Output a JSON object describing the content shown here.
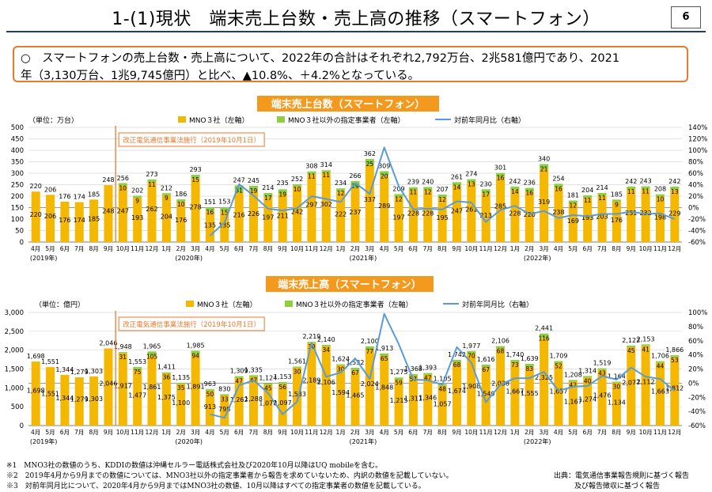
{
  "header": {
    "title": "1-(1)現状　端末売上台数・売上高の推移（スマートフォン）",
    "page_number": "6"
  },
  "summary": {
    "line1": "○　スマートフォンの売上台数・売上高について、2022年の合計はそれぞれ2,792万台、2兆581億円であり、2021",
    "line2": "年（3,130万台、1兆9,745億円）と比べ、▲10.8%、＋4.2%となっている。"
  },
  "colors": {
    "mno": "#f5b800",
    "other": "#8fce3f",
    "yoy": "#5b9bd5",
    "title_bg": "#f39a1e",
    "annotation": "#e87a2e"
  },
  "chart_data": [
    {
      "type": "bar",
      "title": "端末売上台数（スマートフォン）",
      "unit_label": "（単位：万台）",
      "legend": [
        "MNO３社（左軸）",
        "MNO３社以外の指定事業者（左軸）",
        "対前年同月比（右軸）"
      ],
      "annotation": "改正電気通信事業法施行（2019年10月1日）",
      "categories": [
        "4月",
        "5月",
        "6月",
        "7月",
        "8月",
        "9月",
        "10月",
        "11月",
        "12月",
        "1月",
        "2月",
        "3月",
        "4月",
        "5月",
        "6月",
        "7月",
        "8月",
        "9月",
        "10月",
        "11月",
        "12月",
        "1月",
        "2月",
        "3月",
        "4月",
        "5月",
        "6月",
        "7月",
        "8月",
        "9月",
        "10月",
        "11月",
        "12月",
        "1月",
        "2月",
        "3月",
        "4月",
        "5月",
        "6月",
        "7月",
        "8月",
        "9月",
        "10月",
        "11月",
        "12月"
      ],
      "year_labels": [
        {
          "label": "(2019年)",
          "index": 0
        },
        {
          "label": "(2020年)",
          "index": 10
        },
        {
          "label": "(2021年)",
          "index": 22
        },
        {
          "label": "(2022年)",
          "index": 34
        }
      ],
      "mno": [
        220,
        206,
        176,
        174,
        185,
        248,
        247,
        193,
        262,
        204,
        176,
        278,
        135,
        135,
        216,
        226,
        197,
        211,
        242,
        297,
        302,
        222,
        237,
        337,
        289,
        197,
        228,
        228,
        195,
        247,
        261,
        213,
        285,
        228,
        220,
        319,
        238,
        169,
        193,
        203,
        176,
        231,
        232,
        198,
        229
      ],
      "other": [
        0,
        0,
        0,
        0,
        0,
        0,
        10,
        9,
        11,
        9,
        10,
        15,
        16,
        15,
        31,
        19,
        17,
        19,
        10,
        11,
        11,
        12,
        29,
        25,
        20,
        12,
        11,
        12,
        12,
        14,
        13,
        17,
        16,
        14,
        16,
        21,
        16,
        12,
        11,
        11,
        9,
        11,
        11,
        10,
        13
      ],
      "total": [
        220,
        206,
        176,
        174,
        185,
        248,
        256,
        202,
        273,
        212,
        186,
        293,
        151,
        153,
        247,
        245,
        214,
        235,
        252,
        308,
        314,
        234,
        266,
        362,
        309,
        209,
        239,
        240,
        207,
        261,
        274,
        230,
        301,
        242,
        236,
        340,
        254,
        181,
        204,
        214,
        185,
        242,
        243,
        208,
        242
      ],
      "yoy": [
        null,
        null,
        null,
        null,
        null,
        null,
        null,
        null,
        null,
        null,
        null,
        null,
        -49,
        -26,
        41,
        21,
        -2,
        -5,
        -1,
        20,
        15,
        10,
        43,
        24,
        105,
        37,
        -3,
        -2,
        -3,
        11,
        9,
        -25,
        -4,
        3,
        -11,
        -6,
        -18,
        -13,
        -15,
        -11,
        -11,
        -7,
        -11,
        -10,
        -20
      ],
      "ylim": [
        0,
        500
      ],
      "y2lim": [
        -60,
        140
      ],
      "yticks": [
        "0",
        "50",
        "100",
        "150",
        "200",
        "250",
        "300",
        "350",
        "400",
        "450",
        "500"
      ],
      "y2ticks": [
        "-60%",
        "-40%",
        "-20%",
        "0%",
        "20%",
        "40%",
        "60%",
        "80%",
        "100%",
        "120%",
        "140%"
      ]
    },
    {
      "type": "bar",
      "title": "端末売上高（スマートフォン）",
      "unit_label": "（単位：億円）",
      "legend": [
        "MNO３社（左軸）",
        "MNO３社以外の指定事業者（左軸）",
        "対前年同月比（右軸）"
      ],
      "annotation": "改正電気通信事業法施行（2019年10月1日）",
      "categories": [
        "4月",
        "5月",
        "6月",
        "7月",
        "8月",
        "9月",
        "10月",
        "11月",
        "12月",
        "1月",
        "2月",
        "3月",
        "4月",
        "5月",
        "6月",
        "7月",
        "8月",
        "9月",
        "10月",
        "11月",
        "12月",
        "1月",
        "2月",
        "3月",
        "4月",
        "5月",
        "6月",
        "7月",
        "8月",
        "9月",
        "10月",
        "11月",
        "12月",
        "1月",
        "2月",
        "3月",
        "4月",
        "5月",
        "6月",
        "7月",
        "8月",
        "9月",
        "10月",
        "11月",
        "12月"
      ],
      "year_labels": [
        {
          "label": "(2019年)",
          "index": 0
        },
        {
          "label": "(2020年)",
          "index": 10
        },
        {
          "label": "(2021年)",
          "index": 22
        },
        {
          "label": "(2022年)",
          "index": 34
        }
      ],
      "mno": [
        1698,
        1551,
        1344,
        1279,
        1303,
        2046,
        1917,
        1477,
        1861,
        1375,
        1100,
        1891,
        913,
        798,
        1262,
        1288,
        1078,
        1097,
        1533,
        2189,
        2106,
        1594,
        1465,
        2024,
        1848,
        1215,
        1311,
        1346,
        1057,
        1674,
        1908,
        1549,
        2038,
        1667,
        1555,
        2325,
        1657,
        1167,
        1274,
        1476,
        1134,
        2077,
        2112,
        1663,
        1812
      ],
      "other": [
        0,
        0,
        0,
        0,
        0,
        0,
        31,
        75,
        105,
        36,
        35,
        94,
        50,
        33,
        47,
        47,
        45,
        56,
        30,
        30,
        34,
        30,
        67,
        77,
        65,
        59,
        57,
        47,
        48,
        68,
        70,
        67,
        68,
        73,
        83,
        116,
        52,
        42,
        40,
        43,
        30,
        45,
        41,
        44,
        53
      ],
      "total": [
        1698,
        1551,
        1344,
        1279,
        1303,
        2046,
        1948,
        1553,
        1965,
        1411,
        1135,
        1985,
        963,
        830,
        1309,
        1335,
        1124,
        1153,
        1561,
        2219,
        2140,
        1624,
        1532,
        2100,
        1913,
        1275,
        1368,
        1393,
        1105,
        1742,
        1977,
        1616,
        2106,
        1740,
        1639,
        2441,
        1709,
        1208,
        1314,
        1519,
        1164,
        2122,
        2153,
        1706,
        1866
      ],
      "yoy": [
        null,
        null,
        null,
        null,
        null,
        null,
        null,
        null,
        null,
        null,
        null,
        null,
        -44,
        -49,
        -3,
        4,
        -14,
        -44,
        -26,
        57,
        9,
        15,
        35,
        6,
        98,
        55,
        5,
        4,
        -2,
        51,
        29,
        -27,
        -2,
        7,
        7,
        16,
        -11,
        -5,
        -4,
        10,
        5,
        22,
        9,
        6,
        -11
      ],
      "ylim": [
        0,
        3000
      ],
      "y2lim": [
        -60,
        100
      ],
      "yticks": [
        "0",
        "500",
        "1,000",
        "1,500",
        "2,000",
        "2,500",
        "3,000"
      ],
      "y2ticks": [
        "-60%",
        "-40%",
        "-20%",
        "0%",
        "20%",
        "40%",
        "60%",
        "80%",
        "100%"
      ]
    }
  ],
  "notes": [
    "※1　MNO3社の数値のうち、KDDIの数値は沖縄セルラー電話株式会社及び2020年10月以降はUQ mobileを含む。",
    "※2　2019年4月から9月までの数値については、MNO3社以外の指定事業者から報告を求めていないため、内訳の数値を記載していない。",
    "※3　対前年同月比について、2020年4月から9月まではMNO3社の数値、10月以降はすべての指定事業者の数値を記載している。"
  ],
  "source": {
    "line1": "出典：電気通信事業報告規則に基づく報告",
    "line2": "及び報告徴収に基づく報告"
  }
}
